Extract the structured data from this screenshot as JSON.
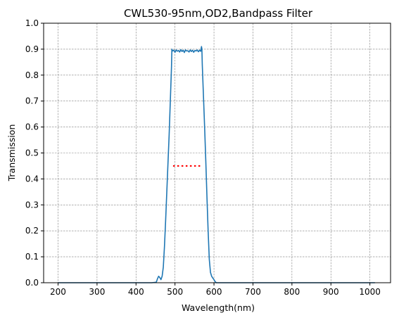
{
  "chart_data": {
    "type": "line",
    "title": "CWL530-95nm,OD2,Bandpass Filter",
    "xlabel": "Wavelength(nm)",
    "ylabel": "Transmission",
    "xlim": [
      163,
      1053
    ],
    "ylim": [
      0,
      1.0
    ],
    "xticks": [
      200,
      300,
      400,
      500,
      600,
      700,
      800,
      900,
      1000
    ],
    "yticks": [
      0.0,
      0.1,
      0.2,
      0.3,
      0.4,
      0.5,
      0.6,
      0.7,
      0.8,
      0.9,
      1.0
    ],
    "grid": true,
    "legend": "none",
    "colors": {
      "curve": "#1f77b4",
      "marker": "#ff0000",
      "grid": "#808080"
    },
    "series": [
      {
        "style": "solid",
        "x": [
          200,
          300,
          400,
          440,
          452,
          455,
          458,
          461,
          464,
          467,
          470,
          473,
          476,
          479,
          482,
          485,
          488,
          491,
          492,
          494,
          497,
          500,
          503,
          506,
          509,
          512,
          515,
          518,
          521,
          524,
          527,
          530,
          533,
          536,
          539,
          542,
          545,
          548,
          551,
          554,
          557,
          560,
          563,
          566,
          568,
          569,
          570,
          573,
          576,
          579,
          582,
          585,
          588,
          591,
          594,
          597,
          600,
          603,
          606,
          610,
          650,
          700,
          800,
          900,
          1000,
          1013
        ],
        "y": [
          0.0,
          0.0,
          0.0,
          0.0,
          0.002,
          0.015,
          0.025,
          0.02,
          0.012,
          0.025,
          0.06,
          0.14,
          0.24,
          0.35,
          0.46,
          0.57,
          0.7,
          0.83,
          0.9,
          0.893,
          0.896,
          0.888,
          0.897,
          0.892,
          0.895,
          0.889,
          0.898,
          0.891,
          0.896,
          0.887,
          0.897,
          0.893,
          0.894,
          0.889,
          0.897,
          0.891,
          0.896,
          0.888,
          0.895,
          0.893,
          0.897,
          0.89,
          0.896,
          0.892,
          0.91,
          0.9,
          0.84,
          0.72,
          0.6,
          0.47,
          0.33,
          0.2,
          0.09,
          0.04,
          0.025,
          0.018,
          0.012,
          0.004,
          0.0,
          0.0,
          0.0,
          0.0,
          0.0,
          0.0,
          0.0,
          0.0
        ]
      },
      {
        "style": "dotted",
        "x": [
          495,
          570
        ],
        "y": [
          0.45,
          0.45
        ]
      }
    ]
  }
}
